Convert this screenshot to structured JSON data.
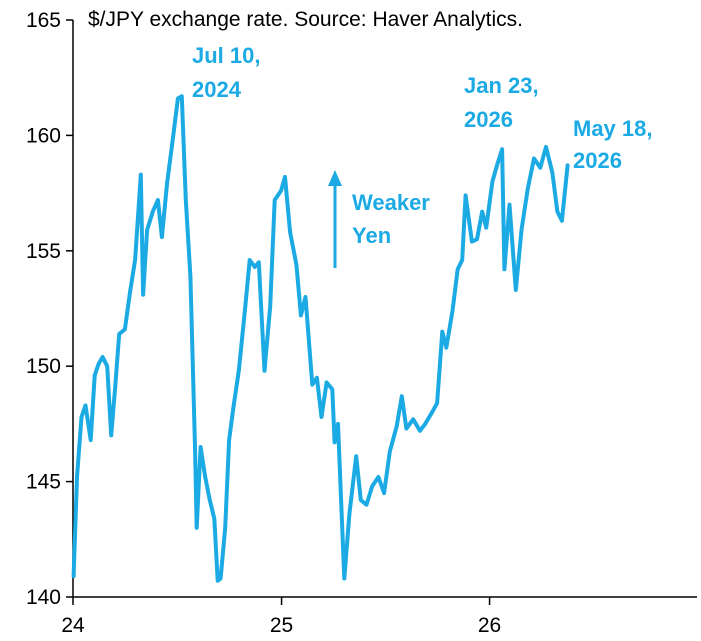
{
  "chart_data": {
    "type": "line",
    "title": "$/JPY exchange rate. Source: Haver Analytics.",
    "xlabel": "",
    "ylabel": "",
    "ylim": [
      140,
      165
    ],
    "xlim": [
      "2024-01-01",
      "2026-12-31"
    ],
    "y_ticks": [
      "140",
      "145",
      "150",
      "155",
      "160",
      "165"
    ],
    "x_ticks": [
      "24",
      "25",
      "26"
    ],
    "grid": false,
    "line_color": "#1CAAE4",
    "annotations": [
      {
        "lines": [
          "Jul 10,",
          "2024"
        ]
      },
      {
        "lines": [
          "Jan 23,",
          "2026"
        ]
      },
      {
        "lines": [
          "May 18,",
          "2026"
        ]
      },
      {
        "lines": [
          "Weaker",
          "Yen"
        ]
      }
    ],
    "series": [
      {
        "x": [
          "2024-01-02",
          "2024-01-08",
          "2024-01-16",
          "2024-01-23",
          "2024-02-01",
          "2024-02-08",
          "2024-02-15",
          "2024-02-22",
          "2024-03-01",
          "2024-03-08",
          "2024-03-15",
          "2024-03-22",
          "2024-04-01",
          "2024-04-10",
          "2024-04-19",
          "2024-04-29",
          "2024-05-03",
          "2024-05-10",
          "2024-05-20",
          "2024-05-29",
          "2024-06-05",
          "2024-06-14",
          "2024-06-24",
          "2024-07-03",
          "2024-07-10",
          "2024-07-17",
          "2024-07-25",
          "2024-08-02",
          "2024-08-05",
          "2024-08-12",
          "2024-08-20",
          "2024-08-28",
          "2024-09-05",
          "2024-09-11",
          "2024-09-16",
          "2024-09-24",
          "2024-10-01",
          "2024-10-09",
          "2024-10-18",
          "2024-10-29",
          "2024-11-06",
          "2024-11-15",
          "2024-11-22",
          "2024-12-02",
          "2024-12-12",
          "2024-12-20",
          "2024-12-31",
          "2025-01-07",
          "2025-01-16",
          "2025-01-27",
          "2025-02-04",
          "2025-02-12",
          "2025-02-24",
          "2025-03-04",
          "2025-03-12",
          "2025-03-21",
          "2025-03-31",
          "2025-04-04",
          "2025-04-10",
          "2025-04-21",
          "2025-04-30",
          "2025-05-12",
          "2025-05-20",
          "2025-05-30",
          "2025-06-09",
          "2025-06-20",
          "2025-06-30",
          "2025-07-10",
          "2025-07-22",
          "2025-07-31",
          "2025-08-08",
          "2025-08-20",
          "2025-09-01",
          "2025-09-10",
          "2025-09-22",
          "2025-10-01",
          "2025-10-10",
          "2025-10-17",
          "2025-10-28",
          "2025-11-06",
          "2025-11-14",
          "2025-11-20",
          "2025-12-01",
          "2025-12-10",
          "2025-12-19",
          "2025-12-26",
          "2026-01-06",
          "2026-01-14",
          "2026-01-23",
          "2026-01-27",
          "2026-02-05",
          "2026-02-16",
          "2026-02-26",
          "2026-03-09",
          "2026-03-20",
          "2026-03-31",
          "2026-04-10",
          "2026-04-21",
          "2026-04-30",
          "2026-05-08",
          "2026-05-18"
        ],
        "values": [
          140.9,
          145.2,
          147.8,
          148.3,
          146.8,
          149.6,
          150.1,
          150.4,
          150.0,
          147.0,
          149.1,
          151.4,
          151.6,
          153.2,
          154.6,
          158.3,
          153.1,
          155.9,
          156.7,
          157.2,
          155.6,
          157.9,
          159.8,
          161.6,
          161.7,
          157.2,
          153.9,
          146.5,
          143.0,
          146.5,
          145.2,
          144.2,
          143.4,
          140.7,
          140.8,
          143.0,
          146.8,
          148.3,
          149.8,
          152.5,
          154.6,
          154.3,
          154.5,
          149.8,
          152.6,
          157.2,
          157.6,
          158.2,
          155.8,
          154.4,
          152.2,
          153.0,
          149.2,
          149.5,
          147.8,
          149.3,
          149.0,
          146.7,
          147.5,
          140.8,
          143.6,
          146.1,
          144.2,
          144.0,
          144.8,
          145.2,
          144.5,
          146.3,
          147.4,
          148.7,
          147.3,
          147.7,
          147.2,
          147.5,
          148.0,
          148.4,
          151.5,
          150.8,
          152.4,
          154.2,
          154.6,
          157.4,
          155.4,
          155.5,
          156.7,
          156.0,
          158.0,
          158.7,
          159.4,
          154.2,
          157.0,
          153.3,
          155.9,
          157.7,
          159.0,
          158.6,
          159.5,
          158.4,
          156.7,
          156.3,
          158.7
        ]
      }
    ]
  }
}
